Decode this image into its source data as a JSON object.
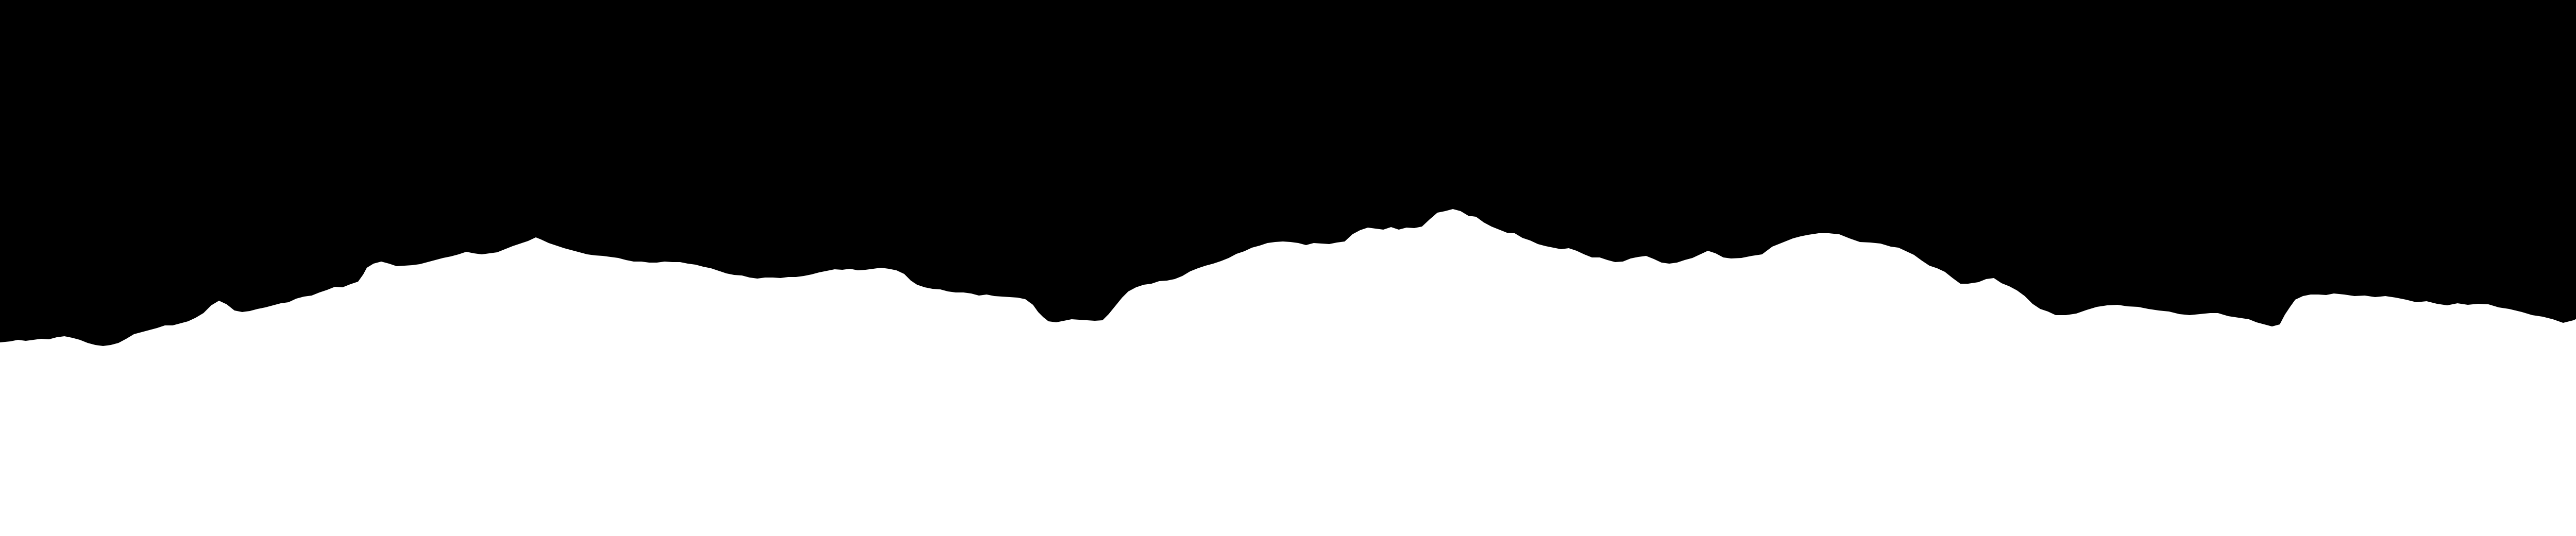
{
  "scene": {
    "description_free": true,
    "foreground_color": "#000000",
    "background_color": "#ffffff"
  }
}
